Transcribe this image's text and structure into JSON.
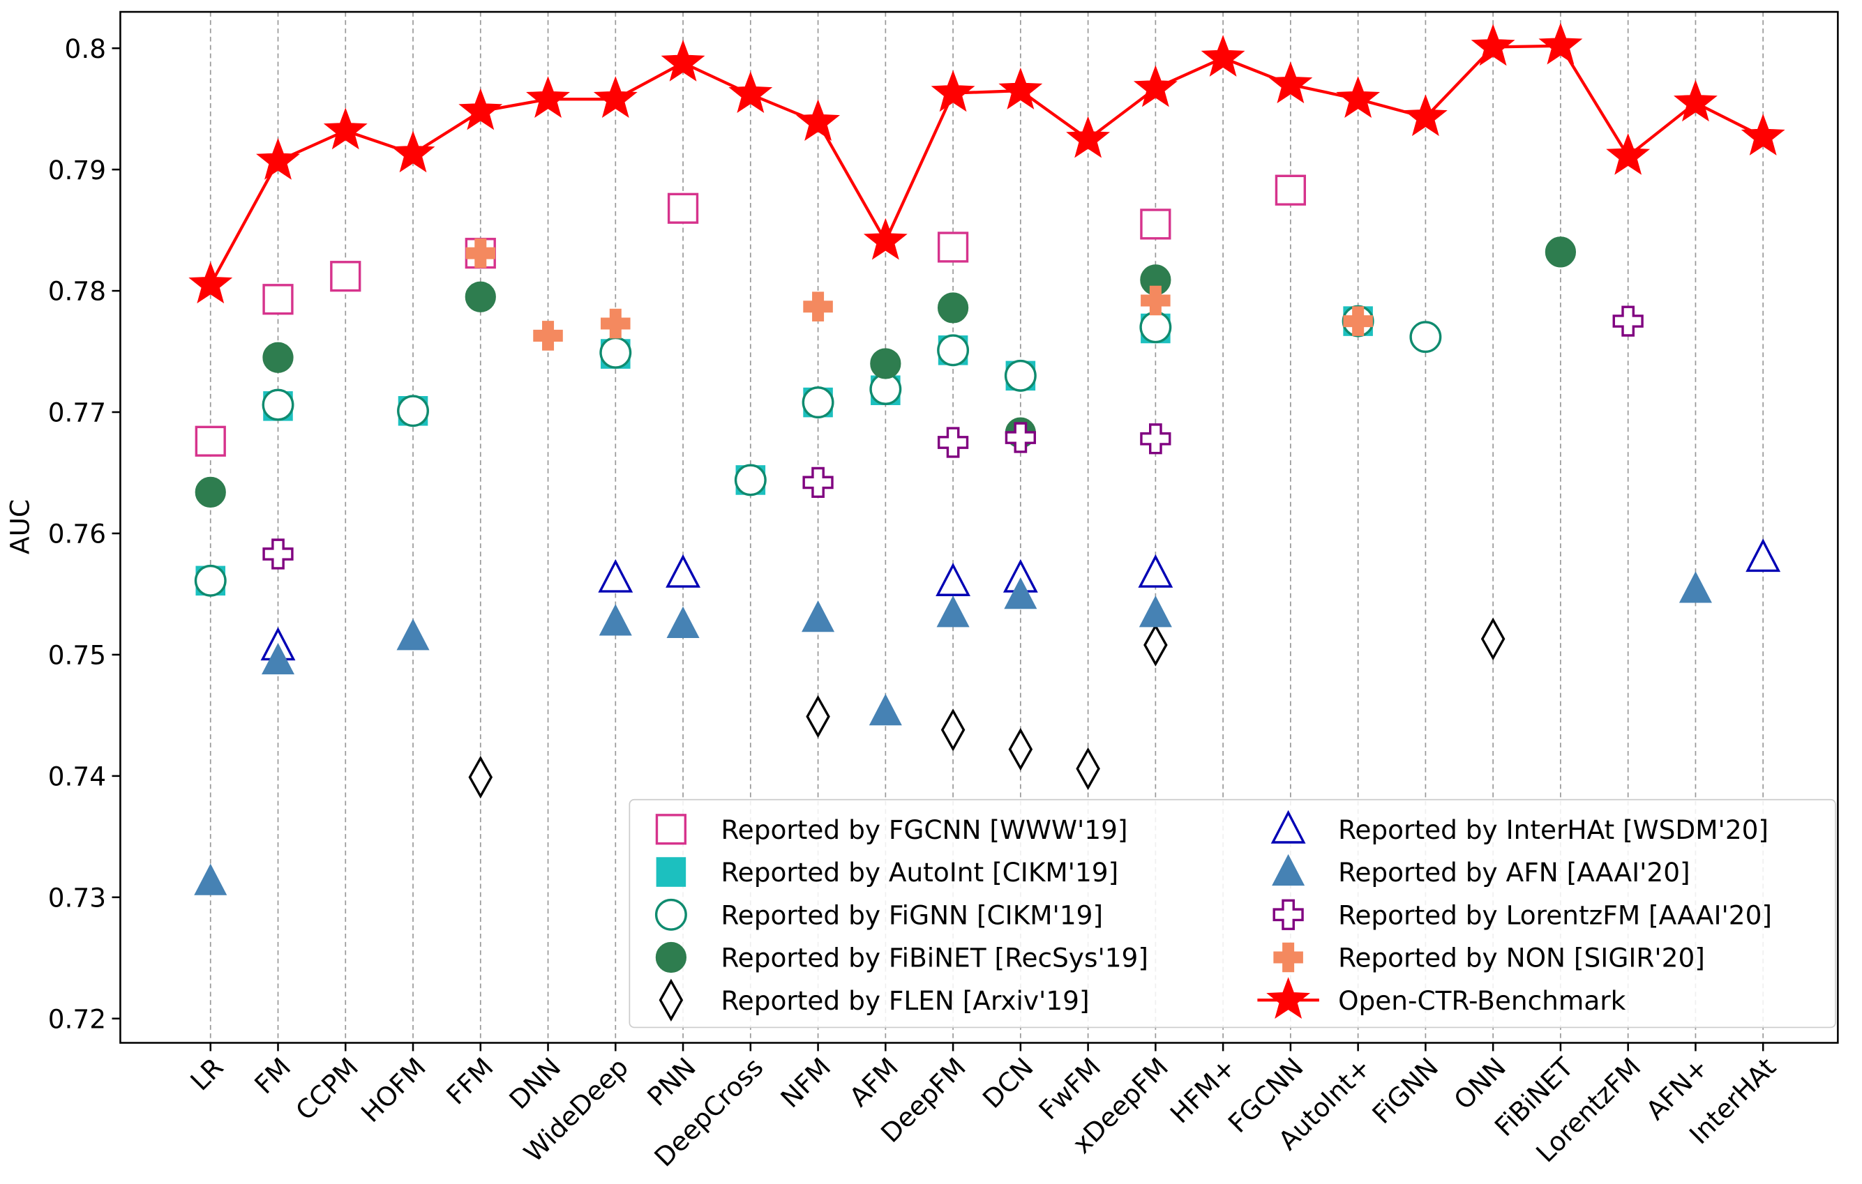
{
  "chart_data": {
    "type": "scatter",
    "y_label": "AUC",
    "categories": [
      "LR",
      "FM",
      "CCPM",
      "HOFM",
      "FFM",
      "DNN",
      "WideDeep",
      "PNN",
      "DeepCross",
      "NFM",
      "AFM",
      "DeepFM",
      "DCN",
      "FwFM",
      "xDeepFM",
      "HFM+",
      "FGCNN",
      "AutoInt+",
      "FiGNN",
      "ONN",
      "FiBiNET",
      "LorentzFM",
      "AFN+",
      "InterHAt"
    ],
    "ylim": [
      0.718,
      0.803
    ],
    "yticks": [
      0.72,
      0.73,
      0.74,
      0.75,
      0.76,
      0.77,
      0.78,
      0.79,
      0.8
    ],
    "grid": true,
    "legend_position": "lower right",
    "legend_columns": 2,
    "series": [
      {
        "name": "Reported by FGCNN [WWW'19]",
        "color": "#d6338c",
        "marker": "square-open",
        "values": [
          0.7676,
          0.7793,
          0.7812,
          null,
          0.7831,
          null,
          null,
          0.7868,
          null,
          null,
          null,
          0.7836,
          null,
          null,
          0.7855,
          null,
          0.7883,
          null,
          null,
          null,
          null,
          null,
          null,
          null
        ]
      },
      {
        "name": "Reported by AutoInt [CIKM'19]",
        "color": "#1cc0bf",
        "marker": "square-filled",
        "values": [
          0.7561,
          0.7705,
          null,
          0.7701,
          null,
          null,
          0.7748,
          null,
          0.7644,
          0.7708,
          0.7718,
          0.7751,
          0.773,
          null,
          0.7769,
          null,
          null,
          0.7775,
          null,
          null,
          null,
          null,
          null,
          null
        ]
      },
      {
        "name": "Reported by FiGNN [CIKM'19]",
        "color": "#0f8b6f",
        "marker": "circle-open",
        "values": [
          0.7561,
          0.7706,
          null,
          0.7701,
          null,
          null,
          0.7749,
          null,
          0.7644,
          0.7708,
          0.7719,
          0.7751,
          0.773,
          null,
          0.777,
          null,
          null,
          0.7775,
          0.7762,
          null,
          null,
          null,
          null,
          null
        ]
      },
      {
        "name": "Reported by FiBiNET [RecSys'19]",
        "color": "#2e7d4f",
        "marker": "circle-filled",
        "values": [
          0.7634,
          0.7745,
          null,
          null,
          0.7795,
          null,
          null,
          null,
          null,
          null,
          0.774,
          0.7786,
          0.7683,
          null,
          0.7809,
          null,
          null,
          null,
          null,
          null,
          0.7832,
          null,
          null,
          null
        ]
      },
      {
        "name": "Reported by FLEN [Arxiv'19]",
        "color": "#000000",
        "marker": "diamond-open",
        "values": [
          null,
          null,
          null,
          null,
          0.7399,
          null,
          null,
          null,
          null,
          0.7449,
          null,
          0.7438,
          0.7422,
          0.7406,
          0.7508,
          null,
          null,
          null,
          null,
          0.7513,
          null,
          null,
          null,
          null
        ]
      },
      {
        "name": "Reported by InterHAt [WSDM'20]",
        "color": "#0000b4",
        "marker": "triangle-open",
        "values": [
          null,
          0.7507,
          null,
          null,
          null,
          null,
          0.7563,
          0.7567,
          null,
          null,
          null,
          0.756,
          0.7563,
          null,
          0.7567,
          null,
          null,
          null,
          null,
          null,
          null,
          null,
          null,
          0.758
        ]
      },
      {
        "name": "Reported by AFN [AAAI'20]",
        "color": "#4682b4",
        "marker": "triangle-filled",
        "values": [
          0.7313,
          0.7495,
          null,
          0.7515,
          null,
          null,
          0.7527,
          0.7525,
          null,
          0.753,
          0.7453,
          0.7534,
          0.7549,
          null,
          0.7534,
          null,
          null,
          null,
          null,
          null,
          null,
          null,
          0.7554,
          null
        ]
      },
      {
        "name": "Reported by LorentzFM [AAAI'20]",
        "color": "#800080",
        "marker": "plus-open",
        "values": [
          null,
          0.7583,
          null,
          null,
          null,
          null,
          null,
          null,
          null,
          0.7642,
          null,
          0.7675,
          0.7679,
          null,
          0.7678,
          null,
          null,
          null,
          null,
          null,
          null,
          0.7775,
          null,
          null
        ]
      },
      {
        "name": "Reported by NON [SIGIR'20]",
        "color": "#f4895f",
        "marker": "plus-filled",
        "values": [
          null,
          null,
          null,
          null,
          0.7831,
          0.7763,
          0.7773,
          null,
          null,
          0.7787,
          null,
          null,
          null,
          null,
          0.7792,
          null,
          null,
          0.7775,
          null,
          null,
          null,
          null,
          null,
          null
        ]
      },
      {
        "name": "Open-CTR-Benchmark",
        "color": "#ff0000",
        "marker": "star",
        "line": true,
        "values": [
          0.7805,
          0.7907,
          0.7932,
          0.7913,
          0.7948,
          0.7958,
          0.7958,
          0.7988,
          0.7962,
          0.7939,
          0.7841,
          0.7963,
          0.7965,
          0.7925,
          0.7967,
          0.7992,
          0.797,
          0.7958,
          0.7943,
          0.8001,
          0.8002,
          0.7911,
          0.7955,
          0.7927
        ]
      }
    ]
  }
}
